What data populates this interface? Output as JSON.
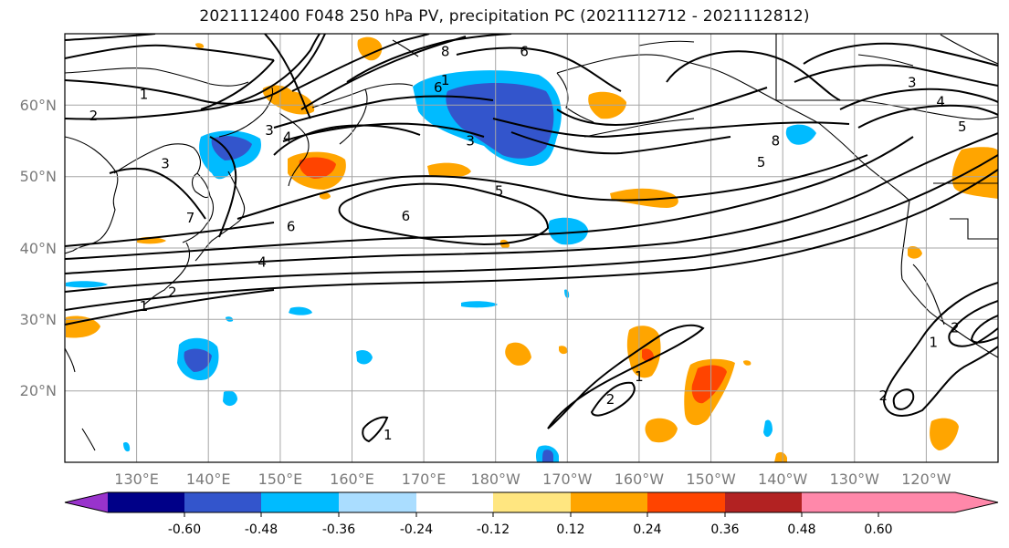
{
  "title": "2021112400 F048 250 hPa PV, precipitation PC (2021112712 - 2021112812)",
  "lat_labels": [
    "60°N",
    "50°N",
    "40°N",
    "30°N",
    "20°N"
  ],
  "lon_labels": [
    "130°E",
    "140°E",
    "150°E",
    "160°E",
    "170°E",
    "180°W",
    "170°W",
    "160°W",
    "150°W",
    "140°W",
    "130°W",
    "120°W"
  ],
  "colorbar": {
    "colors": [
      "#9933cc",
      "#000088",
      "#3355cc",
      "#00bbff",
      "#aaddff",
      "#ffffff",
      "#ffe680",
      "#ffa500",
      "#ff4400",
      "#b22222",
      "#ff88aa"
    ],
    "tick_labels": [
      "-0.60",
      "-0.48",
      "-0.36",
      "-0.24",
      "-0.12",
      "0.12",
      "0.24",
      "0.36",
      "0.48",
      "0.60"
    ]
  },
  "contour_labels": [
    "1",
    "2",
    "3",
    "4",
    "5",
    "6",
    "7",
    "8"
  ],
  "contour_label_marks": [
    {
      "text": "1",
      "lon": 131,
      "lat": 61.5
    },
    {
      "text": "2",
      "lon": 124,
      "lat": 58.5
    },
    {
      "text": "3",
      "lon": 148.5,
      "lat": 56.5
    },
    {
      "text": "4",
      "lon": 151,
      "lat": 55.5
    },
    {
      "text": "3",
      "lon": 134,
      "lat": 51.8
    },
    {
      "text": "7",
      "lon": 137.5,
      "lat": 44.2
    },
    {
      "text": "6",
      "lon": 151.5,
      "lat": 43
    },
    {
      "text": "4",
      "lon": 147.5,
      "lat": 38
    },
    {
      "text": "2",
      "lon": 135,
      "lat": 33.8
    },
    {
      "text": "1",
      "lon": 131,
      "lat": 31.8
    },
    {
      "text": "6",
      "lon": 167.5,
      "lat": 44.5
    },
    {
      "text": "5",
      "lon": 180.5,
      "lat": 48
    },
    {
      "text": "6",
      "lon": 172,
      "lat": 62.5
    },
    {
      "text": "1",
      "lon": 173,
      "lat": 63.5
    },
    {
      "text": "6",
      "lon": 184,
      "lat": 67.5
    },
    {
      "text": "8",
      "lon": 173,
      "lat": 67.5
    },
    {
      "text": "3",
      "lon": 176.5,
      "lat": 55
    },
    {
      "text": "8",
      "lon": 219,
      "lat": 55
    },
    {
      "text": "5",
      "lon": 217,
      "lat": 52
    },
    {
      "text": "3",
      "lon": 238,
      "lat": 63.2
    },
    {
      "text": "4",
      "lon": 242,
      "lat": 60.5
    },
    {
      "text": "5",
      "lon": 245,
      "lat": 57
    },
    {
      "text": "1",
      "lon": 200,
      "lat": 22
    },
    {
      "text": "2",
      "lon": 196,
      "lat": 18.8
    },
    {
      "text": "1",
      "lon": 165,
      "lat": 13.8
    },
    {
      "text": "1",
      "lon": 241,
      "lat": 26.8
    },
    {
      "text": "2",
      "lon": 234,
      "lat": 19.3
    },
    {
      "text": "2",
      "lon": 244,
      "lat": 28.8
    }
  ]
}
